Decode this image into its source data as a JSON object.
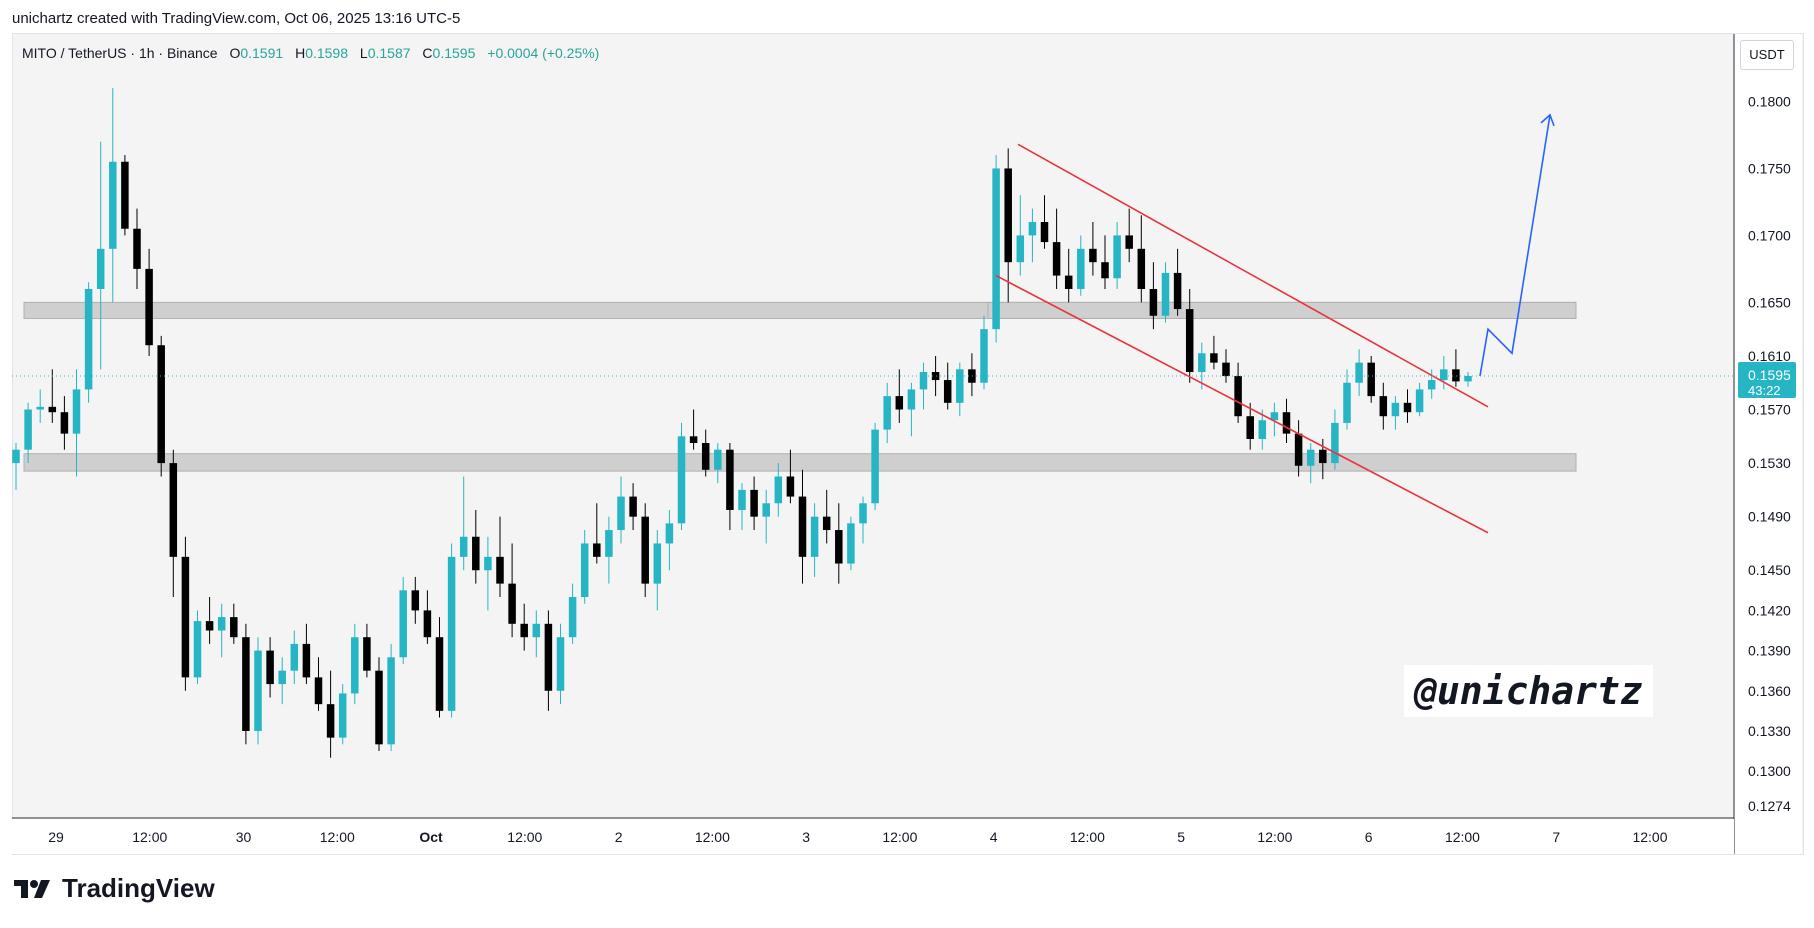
{
  "header": {
    "attribution": "unichartz created with TradingView.com, Oct 06, 2025 13:16 UTC-5"
  },
  "legend": {
    "symbol": "MITO / TetherUS · 1h · Binance",
    "o_label": "O",
    "o": "0.1591",
    "h_label": "H",
    "h": "0.1598",
    "l_label": "L",
    "l": "0.1587",
    "c_label": "C",
    "c": "0.1595",
    "change": "+0.0004 (+0.25%)"
  },
  "currency_button": "USDT",
  "watermark": "@unichartz",
  "brand": "TradingView",
  "colors": {
    "up": "#26b5c5",
    "down": "#000000",
    "channel": "#e8353f",
    "projection": "#2962ff",
    "zone": "#cfcfcf",
    "price_tag": "#26b5c5"
  },
  "chart_data": {
    "type": "candlestick",
    "timeframe": "1h",
    "ylim": [
      0.1265,
      0.1825
    ],
    "price_scale_ticks": [
      "0.1800",
      "0.1750",
      "0.1700",
      "0.1650",
      "0.1610",
      "0.1570",
      "0.1530",
      "0.1490",
      "0.1450",
      "0.1420",
      "0.1390",
      "0.1360",
      "0.1330",
      "0.1300",
      "0.1274"
    ],
    "time_ticks": [
      "29",
      "12:00",
      "30",
      "12:00",
      "Oct",
      "12:00",
      "2",
      "12:00",
      "3",
      "12:00",
      "4",
      "12:00",
      "5",
      "12:00",
      "6",
      "12:00",
      "7",
      "12:00"
    ],
    "current_price": {
      "value": "0.1595",
      "countdown": "43:22"
    },
    "support_zones": [
      {
        "low": 0.1524,
        "high": 0.1537
      },
      {
        "low": 0.1638,
        "high": 0.165
      }
    ],
    "descending_channel": {
      "upper": [
        [
          "Oct 4 ~06:00",
          0.1768
        ],
        [
          "Oct 6 ~14:00",
          0.1572
        ]
      ],
      "lower": [
        [
          "Oct 4 ~00:00",
          0.167
        ],
        [
          "Oct 6 ~14:00",
          0.1478
        ]
      ]
    },
    "projection_path": [
      0.1595,
      0.163,
      0.1612,
      0.179
    ],
    "candles_ohlc": [
      [
        0.153,
        0.1545,
        0.151,
        0.154
      ],
      [
        0.154,
        0.1575,
        0.153,
        0.157
      ],
      [
        0.157,
        0.1585,
        0.156,
        0.1572
      ],
      [
        0.1572,
        0.16,
        0.156,
        0.1568
      ],
      [
        0.1568,
        0.158,
        0.154,
        0.1552
      ],
      [
        0.1552,
        0.16,
        0.152,
        0.1585
      ],
      [
        0.1585,
        0.1665,
        0.1575,
        0.166
      ],
      [
        0.166,
        0.177,
        0.16,
        0.169
      ],
      [
        0.169,
        0.181,
        0.165,
        0.1755
      ],
      [
        0.1755,
        0.176,
        0.17,
        0.1705
      ],
      [
        0.1705,
        0.172,
        0.166,
        0.1675
      ],
      [
        0.1675,
        0.169,
        0.161,
        0.1618
      ],
      [
        0.1618,
        0.1625,
        0.152,
        0.153
      ],
      [
        0.153,
        0.154,
        0.143,
        0.146
      ],
      [
        0.146,
        0.1475,
        0.136,
        0.137
      ],
      [
        0.137,
        0.142,
        0.1365,
        0.1412
      ],
      [
        0.1412,
        0.143,
        0.1395,
        0.1405
      ],
      [
        0.1405,
        0.1425,
        0.1385,
        0.1415
      ],
      [
        0.1415,
        0.1425,
        0.1395,
        0.14
      ],
      [
        0.14,
        0.141,
        0.132,
        0.133
      ],
      [
        0.133,
        0.14,
        0.132,
        0.139
      ],
      [
        0.139,
        0.14,
        0.1355,
        0.1365
      ],
      [
        0.1365,
        0.1385,
        0.135,
        0.1375
      ],
      [
        0.1375,
        0.1405,
        0.1365,
        0.1395
      ],
      [
        0.1395,
        0.141,
        0.1365,
        0.137
      ],
      [
        0.137,
        0.1385,
        0.1345,
        0.135
      ],
      [
        0.135,
        0.1375,
        0.131,
        0.1325
      ],
      [
        0.1325,
        0.1365,
        0.132,
        0.1358
      ],
      [
        0.1358,
        0.141,
        0.135,
        0.14
      ],
      [
        0.14,
        0.141,
        0.137,
        0.1375
      ],
      [
        0.1375,
        0.1385,
        0.1315,
        0.132
      ],
      [
        0.132,
        0.1395,
        0.1315,
        0.1385
      ],
      [
        0.1385,
        0.1445,
        0.138,
        0.1435
      ],
      [
        0.1435,
        0.1445,
        0.141,
        0.142
      ],
      [
        0.142,
        0.1435,
        0.1395,
        0.14
      ],
      [
        0.14,
        0.1415,
        0.134,
        0.1345
      ],
      [
        0.1345,
        0.147,
        0.134,
        0.146
      ],
      [
        0.146,
        0.152,
        0.145,
        0.1475
      ],
      [
        0.1475,
        0.1495,
        0.144,
        0.145
      ],
      [
        0.145,
        0.1475,
        0.142,
        0.146
      ],
      [
        0.146,
        0.149,
        0.143,
        0.144
      ],
      [
        0.144,
        0.147,
        0.14,
        0.141
      ],
      [
        0.141,
        0.1425,
        0.139,
        0.14
      ],
      [
        0.14,
        0.142,
        0.1385,
        0.141
      ],
      [
        0.141,
        0.142,
        0.1345,
        0.136
      ],
      [
        0.136,
        0.141,
        0.135,
        0.14
      ],
      [
        0.14,
        0.144,
        0.1395,
        0.143
      ],
      [
        0.143,
        0.148,
        0.1425,
        0.147
      ],
      [
        0.147,
        0.15,
        0.1455,
        0.146
      ],
      [
        0.146,
        0.149,
        0.144,
        0.148
      ],
      [
        0.148,
        0.152,
        0.147,
        0.1505
      ],
      [
        0.1505,
        0.1515,
        0.148,
        0.149
      ],
      [
        0.149,
        0.15,
        0.143,
        0.144
      ],
      [
        0.144,
        0.148,
        0.142,
        0.147
      ],
      [
        0.147,
        0.1495,
        0.145,
        0.1485
      ],
      [
        0.1485,
        0.156,
        0.148,
        0.155
      ],
      [
        0.155,
        0.157,
        0.154,
        0.1545
      ],
      [
        0.1545,
        0.1555,
        0.152,
        0.1525
      ],
      [
        0.1525,
        0.1545,
        0.1515,
        0.154
      ],
      [
        0.154,
        0.1545,
        0.148,
        0.1495
      ],
      [
        0.1495,
        0.1515,
        0.148,
        0.151
      ],
      [
        0.151,
        0.152,
        0.148,
        0.149
      ],
      [
        0.149,
        0.151,
        0.147,
        0.15
      ],
      [
        0.15,
        0.153,
        0.149,
        0.152
      ],
      [
        0.152,
        0.154,
        0.15,
        0.1505
      ],
      [
        0.1505,
        0.1525,
        0.144,
        0.146
      ],
      [
        0.146,
        0.15,
        0.1445,
        0.149
      ],
      [
        0.149,
        0.151,
        0.147,
        0.148
      ],
      [
        0.148,
        0.15,
        0.144,
        0.1455
      ],
      [
        0.1455,
        0.149,
        0.145,
        0.1485
      ],
      [
        0.1485,
        0.1505,
        0.147,
        0.15
      ],
      [
        0.15,
        0.156,
        0.1495,
        0.1555
      ],
      [
        0.1555,
        0.159,
        0.1545,
        0.158
      ],
      [
        0.158,
        0.16,
        0.156,
        0.157
      ],
      [
        0.157,
        0.159,
        0.155,
        0.1585
      ],
      [
        0.1585,
        0.1605,
        0.157,
        0.1598
      ],
      [
        0.1598,
        0.161,
        0.158,
        0.1592
      ],
      [
        0.1592,
        0.1605,
        0.157,
        0.1575
      ],
      [
        0.1575,
        0.1605,
        0.1565,
        0.16
      ],
      [
        0.16,
        0.1612,
        0.158,
        0.159
      ],
      [
        0.159,
        0.164,
        0.1585,
        0.163
      ],
      [
        0.163,
        0.176,
        0.162,
        0.175
      ],
      [
        0.175,
        0.1765,
        0.165,
        0.168
      ],
      [
        0.168,
        0.173,
        0.167,
        0.17
      ],
      [
        0.17,
        0.172,
        0.168,
        0.171
      ],
      [
        0.171,
        0.173,
        0.169,
        0.1695
      ],
      [
        0.1695,
        0.172,
        0.166,
        0.167
      ],
      [
        0.167,
        0.169,
        0.165,
        0.166
      ],
      [
        0.166,
        0.17,
        0.1655,
        0.169
      ],
      [
        0.169,
        0.171,
        0.167,
        0.168
      ],
      [
        0.168,
        0.17,
        0.166,
        0.1668
      ],
      [
        0.1668,
        0.171,
        0.166,
        0.17
      ],
      [
        0.17,
        0.172,
        0.168,
        0.169
      ],
      [
        0.169,
        0.1715,
        0.165,
        0.166
      ],
      [
        0.166,
        0.168,
        0.163,
        0.164
      ],
      [
        0.164,
        0.168,
        0.1635,
        0.1672
      ],
      [
        0.1672,
        0.169,
        0.164,
        0.1645
      ],
      [
        0.1645,
        0.166,
        0.159,
        0.1598
      ],
      [
        0.1598,
        0.162,
        0.1585,
        0.1612
      ],
      [
        0.1612,
        0.1625,
        0.16,
        0.1605
      ],
      [
        0.1605,
        0.1615,
        0.159,
        0.1595
      ],
      [
        0.1595,
        0.1605,
        0.156,
        0.1565
      ],
      [
        0.1565,
        0.1575,
        0.154,
        0.1548
      ],
      [
        0.1548,
        0.157,
        0.154,
        0.1562
      ],
      [
        0.1562,
        0.1575,
        0.155,
        0.1568
      ],
      [
        0.1568,
        0.1578,
        0.1545,
        0.1552
      ],
      [
        0.1552,
        0.1562,
        0.152,
        0.1528
      ],
      [
        0.1528,
        0.1545,
        0.1515,
        0.154
      ],
      [
        0.154,
        0.1548,
        0.1518,
        0.153
      ],
      [
        0.153,
        0.157,
        0.1525,
        0.156
      ],
      [
        0.156,
        0.16,
        0.1555,
        0.159
      ],
      [
        0.159,
        0.1615,
        0.158,
        0.1605
      ],
      [
        0.1605,
        0.161,
        0.1575,
        0.158
      ],
      [
        0.158,
        0.159,
        0.1555,
        0.1565
      ],
      [
        0.1565,
        0.158,
        0.1555,
        0.1575
      ],
      [
        0.1575,
        0.1585,
        0.156,
        0.1568
      ],
      [
        0.1568,
        0.159,
        0.1565,
        0.1585
      ],
      [
        0.1585,
        0.16,
        0.1578,
        0.1592
      ],
      [
        0.1592,
        0.161,
        0.1585,
        0.16
      ],
      [
        0.16,
        0.1615,
        0.1587,
        0.1591
      ],
      [
        0.1591,
        0.1598,
        0.1587,
        0.1595
      ]
    ]
  }
}
